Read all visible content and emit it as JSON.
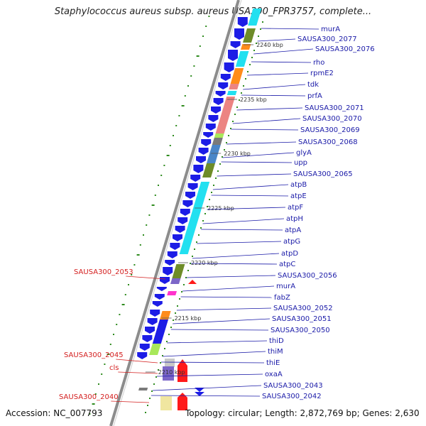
{
  "title": "Staphylococcus aureus subsp. aureus USA300_FPR3757, complete...",
  "footer": {
    "accession": "Accession: NC_007793",
    "topology": "Topology: circular; Length: 2,872,769 bp; Genes: 2,630"
  },
  "colors": {
    "backbone": "#8c8c8c",
    "tick": "#2e8b1e",
    "forward_label": "#1a1aa8",
    "reverse_label": "#d42020",
    "cds": "#1c1ce6",
    "cog_cyan": "#22e0f0",
    "cog_olive": "#6e8c28",
    "cog_orange": "#ff8c1a",
    "cog_salmon": "#ec8482",
    "cog_steel": "#4a86c8",
    "cog_purple": "#7c66c8",
    "cog_lime": "#a8e85a",
    "cog_magenta": "#ff33cc",
    "cog_yellow": "#f0e6a0",
    "cog_gray": "#7a7a7a"
  },
  "scale_labels": [
    "2240 kbp",
    "2235 kbp",
    "2230 kbp",
    "2225 kbp",
    "2220 kbp",
    "2215 kbp",
    "2210 kbp"
  ],
  "forward_genes": [
    "murA",
    "SAUSA300_2077",
    "SAUSA300_2076",
    "rho",
    "rpmE2",
    "tdk",
    "prfA",
    "SAUSA300_2071",
    "SAUSA300_2070",
    "SAUSA300_2069",
    "SAUSA300_2068",
    "glyA",
    "upp",
    "SAUSA300_2065",
    "atpB",
    "atpE",
    "atpF",
    "atpH",
    "atpA",
    "atpG",
    "atpD",
    "atpC",
    "SAUSA300_2056",
    "murA",
    "fabZ",
    "SAUSA300_2052",
    "SAUSA300_2051",
    "SAUSA300_2050",
    "thiD",
    "thiM",
    "thiE",
    "oxaA",
    "SAUSA300_2043",
    "SAUSA300_2042"
  ],
  "reverse_genes": [
    "SAUSA300_2053",
    "SAUSA300_2045",
    "cls",
    "SAUSA300_2040"
  ]
}
